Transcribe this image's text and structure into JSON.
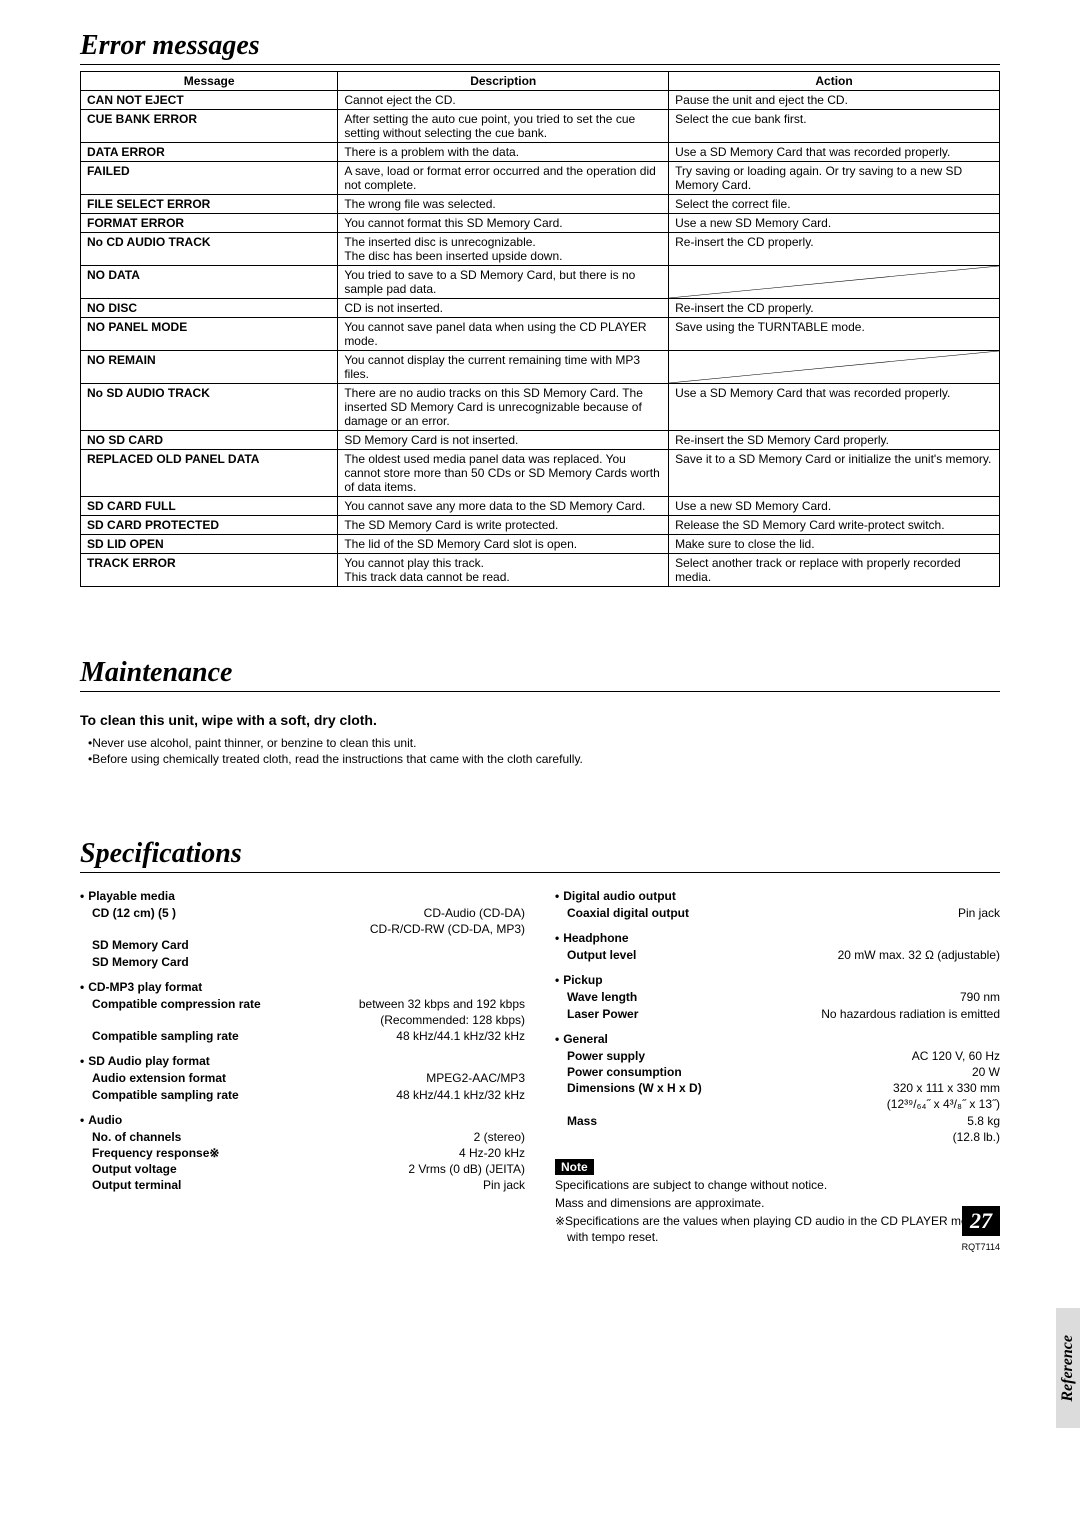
{
  "sections": {
    "errors_title": "Error messages",
    "maint_title": "Maintenance",
    "specs_title": "Specifications"
  },
  "error_table": {
    "headers": [
      "Message",
      "Description",
      "Action"
    ],
    "rows": [
      {
        "msg": "CAN NOT EJECT",
        "desc": "Cannot eject the CD.",
        "act": "Pause the unit and eject the CD."
      },
      {
        "msg": "CUE BANK ERROR",
        "desc": "After setting the auto cue point, you tried to set the cue setting without selecting the cue bank.",
        "act": "Select the cue bank first."
      },
      {
        "msg": "DATA ERROR",
        "desc": "There is a problem with the data.",
        "act": "Use a SD Memory Card that was recorded properly."
      },
      {
        "msg": "FAILED",
        "desc": "A save, load or format error occurred and the operation did not complete.",
        "act": "Try saving or loading again. Or try saving to a new SD Memory Card."
      },
      {
        "msg": "FILE SELECT ERROR",
        "desc": "The wrong file was selected.",
        "act": "Select the correct file."
      },
      {
        "msg": "FORMAT ERROR",
        "desc": "You cannot format this SD Memory Card.",
        "act": "Use a new SD Memory Card."
      },
      {
        "msg": "No CD AUDIO TRACK",
        "desc": "The inserted disc is unrecognizable.\nThe disc has been inserted upside down.",
        "act": "Re-insert the CD properly."
      },
      {
        "msg": "NO DATA",
        "desc": "You tried to save to a SD Memory Card, but there is no sample pad data.",
        "act": "",
        "diag": true
      },
      {
        "msg": "NO DISC",
        "desc": "CD is not inserted.",
        "act": "Re-insert the CD properly."
      },
      {
        "msg": "NO PANEL MODE",
        "desc": "You cannot save panel data when using the CD PLAYER mode.",
        "act": "Save using the TURNTABLE mode."
      },
      {
        "msg": "NO REMAIN",
        "desc": "You cannot display the current remaining time with MP3 files.",
        "act": "",
        "diag": true
      },
      {
        "msg": "No SD AUDIO TRACK",
        "desc": "There are no audio tracks on this SD Memory Card. The inserted SD Memory Card is unrecognizable because of damage or an error.",
        "act": "Use a SD Memory Card that was recorded properly."
      },
      {
        "msg": "NO SD CARD",
        "desc": "SD Memory Card is not inserted.",
        "act": "Re-insert the SD Memory Card properly."
      },
      {
        "msg": "REPLACED OLD PANEL DATA",
        "desc": "The oldest used media panel data was replaced. You cannot store more than 50 CDs or SD Memory Cards worth of data items.",
        "act": "Save it to a SD Memory Card or initialize the unit's memory."
      },
      {
        "msg": "SD CARD FULL",
        "desc": "You cannot save any more data to the SD Memory Card.",
        "act": "Use a new SD Memory Card."
      },
      {
        "msg": "SD CARD PROTECTED",
        "desc": "The SD Memory Card is write protected.",
        "act": "Release the SD Memory Card write-protect switch."
      },
      {
        "msg": "SD LID OPEN",
        "desc": "The lid of the SD Memory Card slot is open.",
        "act": "Make sure to close the lid."
      },
      {
        "msg": "TRACK ERROR",
        "desc": "You cannot play this track.\nThis track data cannot be read.",
        "act": "Select another track or replace with properly recorded media."
      }
    ]
  },
  "maintenance": {
    "subtitle": "To clean this unit, wipe with a soft, dry cloth.",
    "lines": [
      "Never use alcohol, paint thinner, or benzine to clean this unit.",
      "Before using chemically treated cloth, read the instructions that came with the cloth carefully."
    ]
  },
  "specs_left": [
    {
      "title": "Playable media",
      "rows": [
        {
          "label": "CD (12 cm) (5 )",
          "value": "CD-Audio (CD-DA)\nCD-R/CD-RW (CD-DA, MP3)"
        },
        {
          "label": "SD Memory Card",
          "value": ""
        }
      ]
    },
    {
      "title": "CD-MP3 play format",
      "rows": [
        {
          "label": "Compatible compression rate",
          "value": "between 32 kbps and 192 kbps\n(Recommended: 128 kbps)"
        },
        {
          "label": "Compatible sampling rate",
          "value": "48 kHz/44.1 kHz/32 kHz"
        }
      ]
    },
    {
      "title": "SD Audio play format",
      "rows": [
        {
          "label": "Audio extension format",
          "value": "MPEG2-AAC/MP3"
        },
        {
          "label": "Compatible sampling rate",
          "value": "48 kHz/44.1 kHz/32 kHz"
        }
      ]
    },
    {
      "title": "Audio",
      "rows": [
        {
          "label": "No. of channels",
          "value": "2 (stereo)"
        },
        {
          "label": "Frequency response※",
          "value": "4 Hz-20 kHz"
        },
        {
          "label": "Output voltage",
          "value": "2 Vrms (0 dB) (JEITA)"
        },
        {
          "label": "Output terminal",
          "value": "Pin jack"
        }
      ]
    }
  ],
  "specs_right": [
    {
      "title": "Digital audio output",
      "rows": [
        {
          "label": "Coaxial digital output",
          "value": "Pin jack"
        }
      ]
    },
    {
      "title": "Headphone",
      "rows": [
        {
          "label": "Output level",
          "value": "20 mW max. 32 Ω (adjustable)"
        }
      ]
    },
    {
      "title": "Pickup",
      "rows": [
        {
          "label": "Wave length",
          "value": "790 nm"
        },
        {
          "label": "Laser Power",
          "value": "No hazardous radiation is emitted"
        }
      ]
    },
    {
      "title": "General",
      "rows": [
        {
          "label": "Power supply",
          "value": "AC 120 V, 60 Hz"
        },
        {
          "label": "Power consumption",
          "value": "20 W"
        },
        {
          "label": "Dimensions (W x H x D)",
          "value": "320 x 111 x 330 mm\n(12³⁹/₆₄˝ x 4³/₈˝ x 13˝)"
        },
        {
          "label": "Mass",
          "value": "5.8 kg\n(12.8 lb.)"
        }
      ]
    }
  ],
  "note": {
    "badge": "Note",
    "lines": [
      "Specifications are subject to change without notice.",
      "Mass and dimensions are approximate.",
      "※Specifications are the values when playing CD audio in the CD PLAYER mode with tempo reset."
    ]
  },
  "side_tab": "Reference",
  "page_number": "27",
  "footer_code": "RQT7114"
}
